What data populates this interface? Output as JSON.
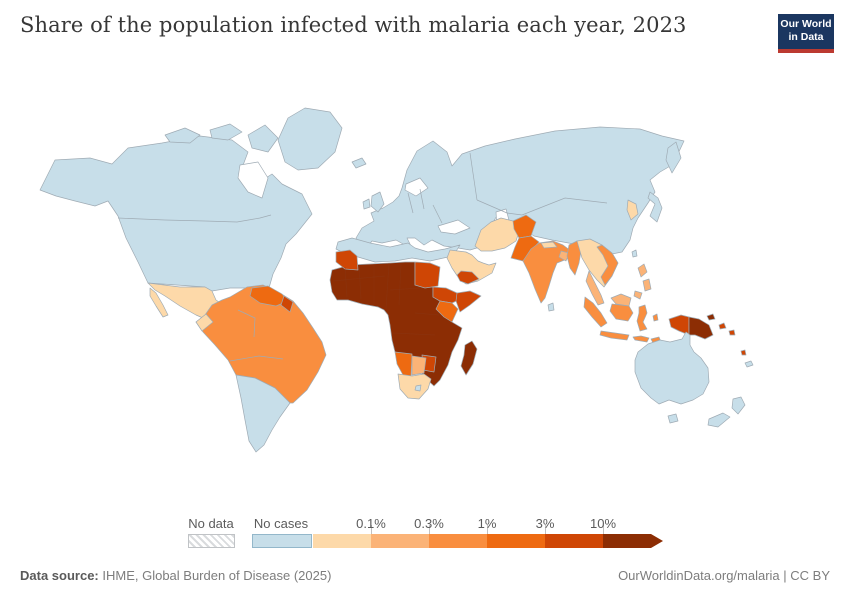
{
  "header": {
    "title": "Share of the population infected with malaria each year, 2023",
    "logo": {
      "line1": "Our World",
      "line2": "in Data",
      "bg_color": "#1b3660",
      "accent_color": "#bc3a31"
    }
  },
  "legend": {
    "no_data_label": "No data",
    "no_cases_label": "No cases",
    "tick_labels": [
      "0.1%",
      "0.3%",
      "1%",
      "3%",
      "10%"
    ],
    "no_cases_color": "#c7dee9",
    "bins": {
      "no_cases": {
        "label": "No cases",
        "color": "#c7dee9"
      },
      "lt_0_1": {
        "label": "<0.1%",
        "color": "#fdd9a9"
      },
      "0_1_0_3": {
        "label": "0.1%-0.3%",
        "color": "#fbb377"
      },
      "0_3_1": {
        "label": "0.3%-1%",
        "color": "#f98e3f"
      },
      "1_3": {
        "label": "1%-3%",
        "color": "#ee6a11"
      },
      "3_10": {
        "label": "3%-10%",
        "color": "#cf4605"
      },
      "gt_10": {
        "label": ">10%",
        "color": "#8c2d04"
      }
    }
  },
  "footer": {
    "source_label": "Data source:",
    "source_text": " IHME, Global Burden of Disease (2025)",
    "right_text": "OurWorldinData.org/malaria | CC BY"
  },
  "map": {
    "ocean_color": "#ffffff",
    "border_color": "#9fabb4",
    "dark_border_color": "#8a3a18",
    "regions": [
      {
        "id": "north-america",
        "label": "United States & Canada",
        "bin": "no_cases"
      },
      {
        "id": "hudson-bay",
        "label": "Hudson Bay",
        "bin": "water"
      },
      {
        "id": "arctic-1",
        "label": "Canadian Arctic Islands",
        "bin": "no_cases"
      },
      {
        "id": "arctic-2",
        "label": "Canadian Arctic Islands",
        "bin": "no_cases"
      },
      {
        "id": "arctic-3",
        "label": "Baffin Island",
        "bin": "no_cases"
      },
      {
        "id": "greenland",
        "label": "Greenland",
        "bin": "no_cases"
      },
      {
        "id": "iceland",
        "label": "Iceland",
        "bin": "no_cases"
      },
      {
        "id": "eurasia",
        "label": "Europe, Russia, China & Central Asia",
        "bin": "no_cases"
      },
      {
        "id": "caspian-sea",
        "label": "Caspian Sea",
        "bin": "water"
      },
      {
        "id": "black-sea",
        "label": "Black Sea",
        "bin": "water"
      },
      {
        "id": "baltic-sea",
        "label": "Baltic Sea",
        "bin": "water"
      },
      {
        "id": "kamchatka",
        "label": "Kamchatka",
        "bin": "no_cases"
      },
      {
        "id": "japan",
        "label": "Japan",
        "bin": "no_cases"
      },
      {
        "id": "korea",
        "label": "Korea",
        "bin": "lt_0_1"
      },
      {
        "id": "uk",
        "label": "United Kingdom",
        "bin": "no_cases"
      },
      {
        "id": "ireland",
        "label": "Ireland",
        "bin": "no_cases"
      },
      {
        "id": "north-africa",
        "label": "Morocco, Algeria, Libya & Egypt",
        "bin": "no_cases"
      },
      {
        "id": "africa-central",
        "label": "West, Central & East Africa",
        "bin": "gt_10"
      },
      {
        "id": "mauritania",
        "label": "Mauritania",
        "bin": "3_10"
      },
      {
        "id": "sudan",
        "label": "Sudan",
        "bin": "3_10"
      },
      {
        "id": "ethiopia",
        "label": "Ethiopia",
        "bin": "3_10"
      },
      {
        "id": "somalia",
        "label": "Somalia",
        "bin": "3_10"
      },
      {
        "id": "kenya",
        "label": "Kenya",
        "bin": "1_3"
      },
      {
        "id": "zimbabwe",
        "label": "Zimbabwe",
        "bin": "3_10"
      },
      {
        "id": "namibia",
        "label": "Namibia",
        "bin": "1_3"
      },
      {
        "id": "botswana",
        "label": "Botswana",
        "bin": "0_1_0_3"
      },
      {
        "id": "south-africa",
        "label": "South Africa",
        "bin": "lt_0_1"
      },
      {
        "id": "lesotho",
        "label": "Lesotho",
        "bin": "no_cases"
      },
      {
        "id": "madagascar",
        "label": "Madagascar",
        "bin": "gt_10"
      },
      {
        "id": "arabia",
        "label": "Saudi Arabia & Gulf states",
        "bin": "lt_0_1"
      },
      {
        "id": "yemen",
        "label": "Yemen",
        "bin": "3_10"
      },
      {
        "id": "iran",
        "label": "Iran",
        "bin": "lt_0_1"
      },
      {
        "id": "afghanistan",
        "label": "Afghanistan",
        "bin": "1_3"
      },
      {
        "id": "pakistan",
        "label": "Pakistan",
        "bin": "1_3"
      },
      {
        "id": "india",
        "label": "India",
        "bin": "0_3_1"
      },
      {
        "id": "nepal",
        "label": "Nepal",
        "bin": "lt_0_1"
      },
      {
        "id": "bangladesh",
        "label": "Bangladesh",
        "bin": "0_1_0_3"
      },
      {
        "id": "sri-lanka",
        "label": "Sri Lanka",
        "bin": "no_cases"
      },
      {
        "id": "myanmar",
        "label": "Myanmar",
        "bin": "0_3_1"
      },
      {
        "id": "indochina",
        "label": "Thailand, Laos & Cambodia",
        "bin": "lt_0_1"
      },
      {
        "id": "vietnam",
        "label": "Vietnam",
        "bin": "0_3_1"
      },
      {
        "id": "malay-peninsula",
        "label": "Malaysia",
        "bin": "0_1_0_3"
      },
      {
        "id": "sumatra",
        "label": "Indonesia (Sumatra)",
        "bin": "0_3_1"
      },
      {
        "id": "java",
        "label": "Indonesia (Java)",
        "bin": "0_3_1"
      },
      {
        "id": "borneo-malaysia",
        "label": "Malaysia (Borneo)",
        "bin": "0_1_0_3"
      },
      {
        "id": "kalimantan",
        "label": "Indonesia (Kalimantan)",
        "bin": "0_3_1"
      },
      {
        "id": "sulawesi",
        "label": "Indonesia (Sulawesi)",
        "bin": "0_3_1"
      },
      {
        "id": "philippines-1",
        "label": "Philippines",
        "bin": "0_1_0_3"
      },
      {
        "id": "philippines-2",
        "label": "Philippines",
        "bin": "0_1_0_3"
      },
      {
        "id": "philippines-3",
        "label": "Philippines",
        "bin": "0_1_0_3"
      },
      {
        "id": "lesser-sunda",
        "label": "Indonesia (Lesser Sunda)",
        "bin": "0_3_1"
      },
      {
        "id": "timor",
        "label": "Timor",
        "bin": "0_3_1"
      },
      {
        "id": "maluku",
        "label": "Indonesia (Maluku)",
        "bin": "0_3_1"
      },
      {
        "id": "west-papua",
        "label": "Indonesia (Papua)",
        "bin": "3_10"
      },
      {
        "id": "png",
        "label": "Papua New Guinea",
        "bin": "gt_10"
      },
      {
        "id": "png-islands",
        "label": "PNG Islands",
        "bin": "gt_10"
      },
      {
        "id": "solomon-1",
        "label": "Solomon Islands",
        "bin": "3_10"
      },
      {
        "id": "solomon-2",
        "label": "Solomon Islands",
        "bin": "3_10"
      },
      {
        "id": "vanuatu",
        "label": "Vanuatu",
        "bin": "3_10"
      },
      {
        "id": "new-caledonia",
        "label": "New Caledonia",
        "bin": "no_cases"
      },
      {
        "id": "taiwan",
        "label": "Taiwan",
        "bin": "no_cases"
      },
      {
        "id": "australia",
        "label": "Australia",
        "bin": "no_cases"
      },
      {
        "id": "tasmania",
        "label": "Tasmania",
        "bin": "no_cases"
      },
      {
        "id": "nz-north",
        "label": "New Zealand (North Island)",
        "bin": "no_cases"
      },
      {
        "id": "nz-south",
        "label": "New Zealand (South Island)",
        "bin": "no_cases"
      },
      {
        "id": "mexico",
        "label": "Mexico & Central America",
        "bin": "lt_0_1"
      },
      {
        "id": "baja",
        "label": "Mexico (Baja California)",
        "bin": "lt_0_1"
      },
      {
        "id": "honduras-nicaragua",
        "label": "Honduras & Nicaragua",
        "bin": "0_3_1"
      },
      {
        "id": "panama",
        "label": "Panama",
        "bin": "0_3_1"
      },
      {
        "id": "cuba",
        "label": "Cuba",
        "bin": "no_cases"
      },
      {
        "id": "hispaniola",
        "label": "Haiti & Dominican Republic",
        "bin": "1_3"
      },
      {
        "id": "sa-north",
        "label": "Brazil, Peru, Colombia & Bolivia",
        "bin": "0_3_1"
      },
      {
        "id": "sa-south",
        "label": "Argentina, Chile & Uruguay",
        "bin": "no_cases"
      },
      {
        "id": "venezuela",
        "label": "Venezuela",
        "bin": "1_3"
      },
      {
        "id": "guyana",
        "label": "Guyana",
        "bin": "3_10"
      },
      {
        "id": "ecuador",
        "label": "Ecuador",
        "bin": "lt_0_1"
      }
    ]
  },
  "chart_data": {
    "type": "choropleth_map",
    "title": "Share of the population infected with malaria each year, 2023",
    "year": 2023,
    "unit": "share of population",
    "legend_bins": [
      "No data",
      "No cases",
      "<0.1%",
      "0.1%-0.3%",
      "0.3%-1%",
      "1%-3%",
      "3%-10%",
      ">10%"
    ],
    "region_values": {
      "United States, Canada, Greenland": "No cases",
      "Europe, Russia, China, Central Asia": "No cases",
      "North Africa (Morocco-Egypt)": "No cases",
      "Australia & New Zealand": "No cases",
      "Argentina, Chile & Uruguay": "No cases",
      "Japan, Cuba, Sri Lanka, Taiwan": "No cases",
      "Mexico, Ecuador, South Africa, Saudi Arabia, Iran, Thailand, Nepal, Korea": "<0.1%",
      "Botswana, Bangladesh, Malaysia, Philippines": "0.1%-0.3%",
      "Brazil, Peru, Colombia, Bolivia, India, Myanmar, Vietnam, Indonesia, Honduras, Nicaragua, Panama": "0.3%-1%",
      "Venezuela, Haiti, Kenya, Namibia, Afghanistan, Pakistan": "1%-3%",
      "Guyana, Mauritania, Sudan, Ethiopia, Somalia, Zimbabwe, Yemen, Indonesia (Papua), Solomon Islands, Vanuatu": "3%-10%",
      "Sub-Saharan West, Central & East Africa, Madagascar, Papua New Guinea": ">10%"
    }
  }
}
